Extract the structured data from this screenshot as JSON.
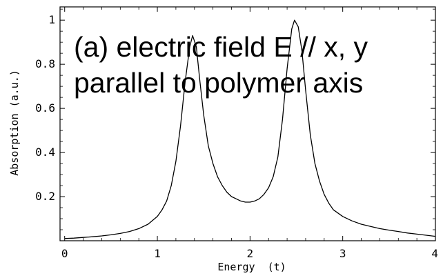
{
  "chart_data": {
    "type": "line",
    "xlabel": "Energy  (t)",
    "ylabel": "Absorption (a.u.)",
    "xlim": [
      -0.05,
      4.0
    ],
    "ylim": [
      0.0,
      1.06
    ],
    "x_ticks": [
      0,
      1,
      2,
      3,
      4
    ],
    "x_tick_labels": [
      "0",
      "1",
      "2",
      "3",
      "4"
    ],
    "y_ticks": [
      0.2,
      0.4,
      0.6,
      0.8,
      1.0
    ],
    "y_tick_labels": [
      "0.2",
      "0.4",
      "0.6",
      "0.8",
      "1"
    ],
    "grid": false,
    "annotations": [
      "(a) electric field E // x, y",
      "parallel to polymer axis"
    ],
    "series": [
      {
        "x": [
          0.0,
          0.1,
          0.2,
          0.3,
          0.4,
          0.5,
          0.6,
          0.7,
          0.8,
          0.9,
          1.0,
          1.05,
          1.1,
          1.15,
          1.2,
          1.25,
          1.3,
          1.35,
          1.38,
          1.42,
          1.46,
          1.5,
          1.55,
          1.6,
          1.65,
          1.7,
          1.75,
          1.8,
          1.85,
          1.9,
          1.95,
          2.0,
          2.05,
          2.1,
          2.15,
          2.2,
          2.25,
          2.3,
          2.35,
          2.4,
          2.45,
          2.48,
          2.52,
          2.56,
          2.6,
          2.65,
          2.7,
          2.75,
          2.8,
          2.85,
          2.9,
          3.0,
          3.1,
          3.2,
          3.3,
          3.4,
          3.5,
          3.6,
          3.7,
          3.8,
          3.9,
          4.0
        ],
        "y": [
          0.01,
          0.012,
          0.015,
          0.018,
          0.022,
          0.027,
          0.033,
          0.042,
          0.055,
          0.075,
          0.11,
          0.14,
          0.18,
          0.25,
          0.36,
          0.52,
          0.72,
          0.88,
          0.93,
          0.88,
          0.72,
          0.57,
          0.43,
          0.35,
          0.29,
          0.25,
          0.22,
          0.2,
          0.19,
          0.18,
          0.175,
          0.175,
          0.18,
          0.19,
          0.21,
          0.24,
          0.29,
          0.38,
          0.55,
          0.78,
          0.96,
          1.0,
          0.97,
          0.86,
          0.68,
          0.48,
          0.35,
          0.27,
          0.21,
          0.17,
          0.14,
          0.11,
          0.09,
          0.075,
          0.065,
          0.055,
          0.048,
          0.042,
          0.035,
          0.03,
          0.025,
          0.02
        ]
      }
    ]
  }
}
